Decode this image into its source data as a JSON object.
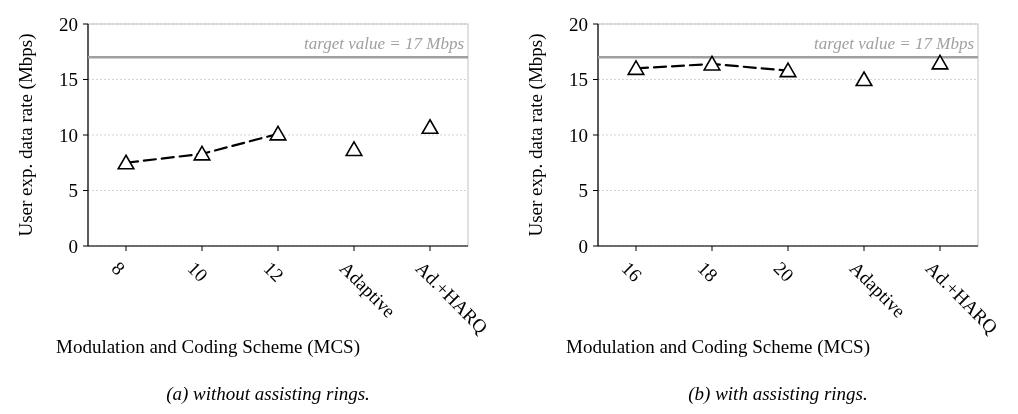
{
  "chart_data": [
    {
      "type": "line",
      "title": "(a) without assisting rings.",
      "xlabel": "Modulation and Coding Scheme (MCS)",
      "ylabel": "User exp. data rate (Mbps)",
      "categories": [
        "8",
        "10",
        "12",
        "Adaptive",
        "Ad.+HARQ"
      ],
      "series": [
        {
          "type": "line",
          "color": "#000000",
          "values": [
            7.5,
            8.3,
            10.1,
            null,
            null
          ]
        },
        {
          "type": "scatter",
          "color": "#000000",
          "values": [
            null,
            null,
            null,
            8.7,
            10.7
          ]
        }
      ],
      "ylim": [
        0,
        20
      ],
      "yticks": [
        0,
        5,
        10,
        15,
        20
      ],
      "grid": "y",
      "marker": "triangle",
      "line_style": "dashed",
      "ref_lines": [
        {
          "axis": "y",
          "value": 17,
          "label": "target value = 17 Mbps",
          "color": "#a0a0a0"
        }
      ]
    },
    {
      "type": "line",
      "title": "(b) with assisting rings.",
      "xlabel": "Modulation and Coding Scheme (MCS)",
      "ylabel": "User exp. data rate (Mbps)",
      "categories": [
        "16",
        "18",
        "20",
        "Adaptive",
        "Ad.+HARQ"
      ],
      "series": [
        {
          "type": "line",
          "color": "#000000",
          "values": [
            16.0,
            16.4,
            15.8,
            null,
            null
          ]
        },
        {
          "type": "scatter",
          "color": "#000000",
          "values": [
            null,
            null,
            null,
            15.0,
            16.5
          ]
        }
      ],
      "ylim": [
        0,
        20
      ],
      "yticks": [
        0,
        5,
        10,
        15,
        20
      ],
      "grid": "y",
      "marker": "triangle",
      "line_style": "dashed",
      "ref_lines": [
        {
          "axis": "y",
          "value": 17,
          "label": "target value = 17 Mbps",
          "color": "#a0a0a0"
        }
      ]
    }
  ]
}
